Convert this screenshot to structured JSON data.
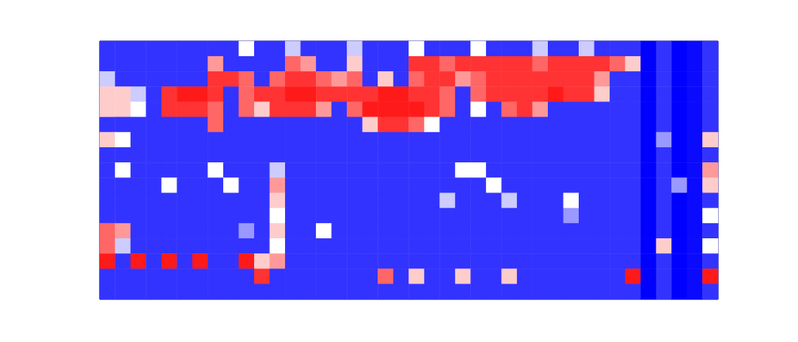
{
  "chart_data": {
    "type": "heatmap",
    "tick_labels": false,
    "grid": false,
    "color_range": [
      0,
      1
    ],
    "cells": [
      [
        0.1,
        0.1,
        0.1,
        0.1,
        0.1,
        0.1,
        0.1,
        0.1,
        0.1,
        0.5,
        0.1,
        0.1,
        0.4,
        0.1,
        0.1,
        0.1,
        0.4,
        0.1,
        0.1,
        0.1,
        0.5,
        0.1,
        0.1,
        0.1,
        0.5,
        0.1,
        0.1,
        0.1,
        0.4,
        0.1,
        0.1,
        0.4,
        0.1,
        0.1,
        0.1,
        0,
        0.1,
        0,
        0.02,
        0.1
      ],
      [
        0.1,
        0.1,
        0.1,
        0.1,
        0.1,
        0.1,
        0.1,
        0.7,
        0.1,
        0.1,
        0.1,
        0.1,
        0.8,
        0.7,
        0.1,
        0.1,
        0.6,
        0.1,
        0.1,
        0.1,
        0.9,
        0.9,
        0.8,
        0.9,
        0.9,
        0.9,
        0.9,
        0.9,
        0.8,
        0.9,
        0.9,
        0.9,
        0.9,
        0.8,
        0.6,
        0,
        0.1,
        0,
        0.02,
        0.1
      ],
      [
        0.4,
        0.1,
        0.1,
        0.1,
        0.1,
        0.1,
        0.1,
        0.9,
        0.9,
        0.8,
        0.1,
        0.8,
        0.9,
        0.9,
        0.8,
        0.7,
        0.8,
        0.1,
        0.6,
        0.1,
        0.8,
        0.9,
        0.9,
        0.7,
        0.8,
        0.9,
        0.9,
        0.9,
        0.9,
        0.9,
        0.9,
        0.9,
        0.7,
        0.1,
        0.1,
        0,
        0.1,
        0,
        0.02,
        0.1
      ],
      [
        0.6,
        0.6,
        0.4,
        0.1,
        0.9,
        0.95,
        0.95,
        0.9,
        0.1,
        0.8,
        0.9,
        0.9,
        0.95,
        0.95,
        0.9,
        0.9,
        0.9,
        0.9,
        0.95,
        0.95,
        0.9,
        0.9,
        0.8,
        0.1,
        0.8,
        0.9,
        0.9,
        0.9,
        0.9,
        0.95,
        0.9,
        0.9,
        0.6,
        0.1,
        0.1,
        0,
        0.1,
        0,
        0.02,
        0.1
      ],
      [
        0.6,
        0.6,
        0.5,
        0.1,
        0.9,
        0.9,
        0.9,
        0.8,
        0.1,
        0.8,
        0.6,
        0.9,
        0.9,
        0.9,
        0.7,
        0.1,
        0.8,
        0.95,
        0.95,
        0.95,
        0.95,
        0.9,
        0.8,
        0.1,
        0.5,
        0.1,
        0.8,
        0.9,
        0.7,
        0.1,
        0.1,
        0.1,
        0.1,
        0.1,
        0.1,
        0,
        0.1,
        0,
        0.02,
        0.1
      ],
      [
        0.1,
        0.1,
        0.1,
        0.1,
        0.1,
        0.1,
        0.1,
        0.8,
        0.1,
        0.1,
        0.1,
        0.1,
        0.1,
        0.1,
        0.1,
        0.1,
        0.1,
        0.6,
        0.9,
        0.9,
        0.8,
        0.5,
        0.1,
        0.1,
        0.1,
        0.1,
        0.1,
        0.1,
        0.1,
        0.1,
        0.1,
        0.1,
        0.1,
        0.1,
        0.1,
        0,
        0.1,
        0,
        0.02,
        0.1
      ],
      [
        0.6,
        0.5,
        0.1,
        0.1,
        0.1,
        0.1,
        0.1,
        0.1,
        0.1,
        0.1,
        0.1,
        0.1,
        0.1,
        0.1,
        0.1,
        0.1,
        0.1,
        0.1,
        0.1,
        0.1,
        0.1,
        0.1,
        0.1,
        0.1,
        0.1,
        0.1,
        0.1,
        0.1,
        0.1,
        0.1,
        0.1,
        0.1,
        0.1,
        0.1,
        0.1,
        0,
        0.3,
        0,
        0.02,
        0.6
      ],
      [
        0.1,
        0.1,
        0.1,
        0.1,
        0.1,
        0.1,
        0.1,
        0.1,
        0.1,
        0.1,
        0.1,
        0.1,
        0.1,
        0.1,
        0.1,
        0.1,
        0.1,
        0.1,
        0.1,
        0.1,
        0.1,
        0.1,
        0.1,
        0.1,
        0.1,
        0.1,
        0.1,
        0.1,
        0.1,
        0.1,
        0.1,
        0.1,
        0.1,
        0.1,
        0.1,
        0,
        0.1,
        0,
        0.02,
        0.1
      ],
      [
        0.1,
        0.5,
        0.1,
        0.1,
        0.1,
        0.1,
        0.1,
        0.5,
        0.1,
        0.1,
        0.1,
        0.4,
        0.1,
        0.1,
        0.1,
        0.1,
        0.1,
        0.1,
        0.1,
        0.1,
        0.1,
        0.1,
        0.1,
        0.5,
        0.5,
        0.1,
        0.1,
        0.1,
        0.1,
        0.1,
        0.1,
        0.1,
        0.1,
        0.1,
        0.1,
        0,
        0.1,
        0,
        0.02,
        0.7
      ],
      [
        0.1,
        0.1,
        0.1,
        0.1,
        0.5,
        0.1,
        0.1,
        0.1,
        0.5,
        0.1,
        0.1,
        0.7,
        0.1,
        0.1,
        0.1,
        0.1,
        0.1,
        0.1,
        0.1,
        0.1,
        0.1,
        0.1,
        0.1,
        0.1,
        0.1,
        0.5,
        0.1,
        0.1,
        0.1,
        0.1,
        0.1,
        0.1,
        0.1,
        0.1,
        0.1,
        0,
        0.1,
        0.3,
        0.02,
        0.6
      ],
      [
        0.1,
        0.1,
        0.1,
        0.1,
        0.1,
        0.1,
        0.1,
        0.1,
        0.1,
        0.1,
        0.1,
        0.6,
        0.1,
        0.1,
        0.1,
        0.1,
        0.1,
        0.1,
        0.1,
        0.1,
        0.1,
        0.1,
        0.4,
        0.1,
        0.1,
        0.1,
        0.4,
        0.1,
        0.1,
        0.1,
        0.5,
        0.1,
        0.1,
        0.1,
        0.1,
        0,
        0.1,
        0,
        0.02,
        0.1
      ],
      [
        0.1,
        0.1,
        0.1,
        0.1,
        0.1,
        0.1,
        0.1,
        0.1,
        0.1,
        0.1,
        0.1,
        0.5,
        0.1,
        0.1,
        0.1,
        0.1,
        0.1,
        0.1,
        0.1,
        0.1,
        0.1,
        0.1,
        0.1,
        0.1,
        0.1,
        0.1,
        0.1,
        0.1,
        0.1,
        0.1,
        0.3,
        0.1,
        0.1,
        0.1,
        0.1,
        0,
        0.1,
        0,
        0.02,
        0.5
      ],
      [
        0.8,
        0.7,
        0.1,
        0.1,
        0.1,
        0.1,
        0.1,
        0.1,
        0.1,
        0.3,
        0.1,
        0.6,
        0.1,
        0.1,
        0.5,
        0.1,
        0.1,
        0.1,
        0.1,
        0.1,
        0.1,
        0.1,
        0.1,
        0.1,
        0.1,
        0.1,
        0.1,
        0.1,
        0.1,
        0.1,
        0.1,
        0.1,
        0.1,
        0.1,
        0.1,
        0,
        0.1,
        0,
        0.02,
        0.1
      ],
      [
        0.8,
        0.4,
        0.1,
        0.1,
        0.1,
        0.1,
        0.1,
        0.1,
        0.1,
        0.1,
        0.1,
        0.5,
        0.1,
        0.1,
        0.1,
        0.1,
        0.1,
        0.1,
        0.1,
        0.1,
        0.1,
        0.1,
        0.1,
        0.1,
        0.1,
        0.1,
        0.1,
        0.1,
        0.1,
        0.1,
        0.1,
        0.1,
        0.1,
        0.1,
        0.1,
        0,
        0.6,
        0,
        0.02,
        0.5
      ],
      [
        0.95,
        0.1,
        0.95,
        0.1,
        0.95,
        0.1,
        0.95,
        0.1,
        0.1,
        0.95,
        0.6,
        0.7,
        0.1,
        0.1,
        0.1,
        0.1,
        0.1,
        0.1,
        0.1,
        0.1,
        0.1,
        0.1,
        0.1,
        0.1,
        0.1,
        0.1,
        0.1,
        0.1,
        0.1,
        0.1,
        0.1,
        0.1,
        0.1,
        0.1,
        0.1,
        0,
        0.1,
        0,
        0.02,
        0.1
      ],
      [
        0.1,
        0.1,
        0.1,
        0.1,
        0.1,
        0.1,
        0.1,
        0.1,
        0.1,
        0.1,
        0.9,
        0.1,
        0.1,
        0.1,
        0.1,
        0.1,
        0.1,
        0.1,
        0.8,
        0.1,
        0.6,
        0.1,
        0.1,
        0.6,
        0.1,
        0.1,
        0.6,
        0.1,
        0.1,
        0.1,
        0.1,
        0.1,
        0.1,
        0.1,
        0.95,
        0,
        0.1,
        0,
        0.02,
        0.95
      ],
      [
        0.1,
        0.1,
        0.1,
        0.1,
        0.1,
        0.1,
        0.1,
        0.1,
        0.1,
        0.1,
        0.1,
        0.1,
        0.1,
        0.1,
        0.1,
        0.1,
        0.1,
        0.1,
        0.1,
        0.1,
        0.1,
        0.1,
        0.1,
        0.1,
        0.1,
        0.1,
        0.1,
        0.1,
        0.1,
        0.1,
        0.1,
        0.1,
        0.1,
        0.1,
        0.1,
        0,
        0.1,
        0,
        0.02,
        0.1
      ]
    ]
  }
}
